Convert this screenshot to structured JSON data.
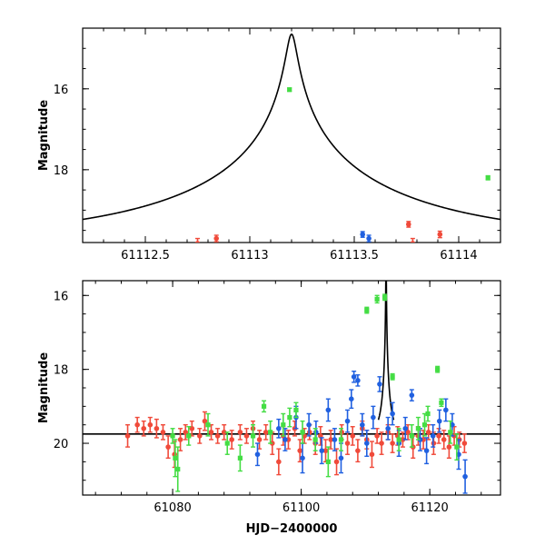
{
  "chart_data": [
    {
      "type": "scatter",
      "name": "top-panel",
      "ylabel": "Magnitude",
      "xlabel": "",
      "xlim": [
        61112.2,
        61114.2
      ],
      "ylim": [
        14.5,
        19.8
      ],
      "y_inverted": true,
      "x_ticks": [
        61112.5,
        61113,
        61113.5,
        61114
      ],
      "x_tick_labels": [
        "61112.5",
        "61113",
        "61113.5",
        "61114"
      ],
      "y_ticks": [
        16,
        18
      ],
      "y_tick_labels": [
        "16",
        "18"
      ],
      "model": {
        "baseline": 19.75,
        "peak_time": 61113.2,
        "peak_mag": 14.65,
        "u0": 0.02,
        "tE": 1.2
      },
      "series": [
        {
          "name": "red",
          "color": "#f04a3a",
          "marker": "circle",
          "points": [
            [
              61112.75,
              19.82,
              0.12
            ],
            [
              61112.84,
              19.7,
              0.08
            ],
            [
              61113.76,
              19.35,
              0.07
            ],
            [
              61113.78,
              19.82,
              0.12
            ],
            [
              61113.91,
              19.6,
              0.08
            ]
          ]
        },
        {
          "name": "blue",
          "color": "#2060e0",
          "marker": "circle",
          "points": [
            [
              61113.54,
              19.6,
              0.07
            ],
            [
              61113.57,
              19.7,
              0.08
            ]
          ]
        },
        {
          "name": "green",
          "color": "#44dd44",
          "marker": "square",
          "points": [
            [
              61113.19,
              16.02,
              0.04
            ],
            [
              61114.14,
              18.2,
              0.05
            ]
          ]
        }
      ]
    },
    {
      "type": "scatter",
      "name": "bottom-panel",
      "ylabel": "Magnitude",
      "xlabel": "HJD−2400000",
      "xlim": [
        61066,
        61131
      ],
      "ylim": [
        15.6,
        21.4
      ],
      "y_inverted": true,
      "x_ticks": [
        61080,
        61100,
        61120
      ],
      "x_tick_labels": [
        "61080",
        "61100",
        "61120"
      ],
      "y_ticks": [
        16,
        18,
        20
      ],
      "y_tick_labels": [
        "16",
        "18",
        "20"
      ],
      "model": {
        "baseline": 19.75,
        "peak_time": 61113.2,
        "peak_mag": 14.65,
        "u0": 0.02,
        "tE": 1.2
      },
      "series": [
        {
          "name": "red",
          "color": "#f04a3a",
          "marker": "circle",
          "points": [
            [
              61073,
              19.8,
              0.3
            ],
            [
              61074.5,
              19.5,
              0.2
            ],
            [
              61075.5,
              19.6,
              0.2
            ],
            [
              61076.5,
              19.5,
              0.2
            ],
            [
              61077.5,
              19.6,
              0.25
            ],
            [
              61078.5,
              19.7,
              0.2
            ],
            [
              61079.3,
              20.1,
              0.3
            ],
            [
              61080.3,
              20.3,
              0.35
            ],
            [
              61081.2,
              19.9,
              0.3
            ],
            [
              61082,
              19.7,
              0.2
            ],
            [
              61083,
              19.6,
              0.2
            ],
            [
              61084.2,
              19.8,
              0.2
            ],
            [
              61085,
              19.4,
              0.25
            ],
            [
              61086,
              19.7,
              0.2
            ],
            [
              61087,
              19.8,
              0.2
            ],
            [
              61088,
              19.7,
              0.2
            ],
            [
              61089.2,
              19.9,
              0.25
            ],
            [
              61090.5,
              19.7,
              0.2
            ],
            [
              61091.5,
              19.8,
              0.2
            ],
            [
              61092.5,
              19.6,
              0.2
            ],
            [
              61093.5,
              19.9,
              0.25
            ],
            [
              61094.5,
              19.7,
              0.2
            ],
            [
              61095.5,
              20.0,
              0.3
            ],
            [
              61096.5,
              20.5,
              0.35
            ],
            [
              61097.2,
              19.8,
              0.25
            ],
            [
              61098,
              19.9,
              0.25
            ],
            [
              61099,
              19.6,
              0.2
            ],
            [
              61099.8,
              20.2,
              0.3
            ],
            [
              61100.5,
              19.8,
              0.2
            ],
            [
              61101.3,
              19.7,
              0.2
            ],
            [
              61102.2,
              20.0,
              0.3
            ],
            [
              61103,
              19.8,
              0.25
            ],
            [
              61103.8,
              20.2,
              0.3
            ],
            [
              61104.6,
              19.9,
              0.25
            ],
            [
              61105.5,
              20.5,
              0.35
            ],
            [
              61106.3,
              19.7,
              0.2
            ],
            [
              61107.2,
              20.0,
              0.3
            ],
            [
              61108,
              19.8,
              0.25
            ],
            [
              61108.8,
              20.2,
              0.3
            ],
            [
              61109.5,
              19.6,
              0.2
            ],
            [
              61110.2,
              19.9,
              0.25
            ],
            [
              61111,
              20.3,
              0.35
            ],
            [
              61111.8,
              19.8,
              0.2
            ],
            [
              61112.5,
              20.0,
              0.3
            ],
            [
              61113.5,
              19.7,
              0.2
            ],
            [
              61114.2,
              20.0,
              0.25
            ],
            [
              61115,
              19.8,
              0.25
            ],
            [
              61115.8,
              19.9,
              0.2
            ],
            [
              61116.6,
              19.7,
              0.2
            ],
            [
              61117.4,
              20.1,
              0.3
            ],
            [
              61118.2,
              19.8,
              0.25
            ],
            [
              61119,
              19.9,
              0.25
            ],
            [
              61119.8,
              19.7,
              0.2
            ],
            [
              61120.6,
              20.0,
              0.3
            ],
            [
              61121.4,
              19.8,
              0.2
            ],
            [
              61122.2,
              19.9,
              0.25
            ],
            [
              61123,
              20.1,
              0.3
            ],
            [
              61123.8,
              19.8,
              0.25
            ],
            [
              61124.6,
              19.9,
              0.2
            ],
            [
              61125.4,
              20.0,
              0.25
            ]
          ]
        },
        {
          "name": "blue",
          "color": "#2060e0",
          "marker": "circle",
          "points": [
            [
              61093.2,
              20.3,
              0.3
            ],
            [
              61096.5,
              19.6,
              0.25
            ],
            [
              61097.5,
              19.9,
              0.3
            ],
            [
              61099.2,
              19.3,
              0.3
            ],
            [
              61100.2,
              20.4,
              0.4
            ],
            [
              61101.2,
              19.5,
              0.3
            ],
            [
              61102.3,
              19.7,
              0.3
            ],
            [
              61103.2,
              20.2,
              0.35
            ],
            [
              61104.2,
              19.1,
              0.3
            ],
            [
              61105.2,
              19.9,
              0.3
            ],
            [
              61106.2,
              20.4,
              0.4
            ],
            [
              61107.2,
              19.4,
              0.3
            ],
            [
              61107.8,
              18.8,
              0.25
            ],
            [
              61108.2,
              18.2,
              0.15
            ],
            [
              61108.8,
              18.3,
              0.15
            ],
            [
              61109.5,
              19.5,
              0.3
            ],
            [
              61110.2,
              20.0,
              0.35
            ],
            [
              61111.2,
              19.3,
              0.3
            ],
            [
              61112.2,
              18.4,
              0.2
            ],
            [
              61113.5,
              19.6,
              0.3
            ],
            [
              61114.2,
              19.2,
              0.3
            ],
            [
              61115.2,
              20.0,
              0.35
            ],
            [
              61116.2,
              19.6,
              0.3
            ],
            [
              61117.2,
              18.7,
              0.15
            ],
            [
              61118.5,
              19.9,
              0.3
            ],
            [
              61119.5,
              20.2,
              0.35
            ],
            [
              61120.5,
              19.8,
              0.3
            ],
            [
              61121.5,
              19.4,
              0.3
            ],
            [
              61122.5,
              19.1,
              0.3
            ],
            [
              61123.5,
              19.5,
              0.3
            ],
            [
              61124.5,
              20.3,
              0.4
            ],
            [
              61125.5,
              20.9,
              0.45
            ]
          ]
        },
        {
          "name": "green",
          "color": "#44dd44",
          "marker": "square",
          "points": [
            [
              61080,
              19.8,
              0.2
            ],
            [
              61080.4,
              20.4,
              0.5
            ],
            [
              61080.8,
              20.7,
              0.6
            ],
            [
              61082.5,
              19.8,
              0.25
            ],
            [
              61085.5,
              19.5,
              0.3
            ],
            [
              61088.5,
              20.0,
              0.3
            ],
            [
              61090.5,
              20.4,
              0.35
            ],
            [
              61092.5,
              19.8,
              0.3
            ],
            [
              61094.2,
              19.0,
              0.15
            ],
            [
              61095.2,
              19.7,
              0.3
            ],
            [
              61097.2,
              19.5,
              0.3
            ],
            [
              61098.2,
              19.3,
              0.25
            ],
            [
              61099.2,
              19.1,
              0.2
            ],
            [
              61100.2,
              19.7,
              0.3
            ],
            [
              61102.2,
              19.9,
              0.3
            ],
            [
              61104.2,
              20.5,
              0.4
            ],
            [
              61106.2,
              19.9,
              0.3
            ],
            [
              61110.2,
              16.4,
              0.08
            ],
            [
              61111.8,
              16.1,
              0.1
            ],
            [
              61113,
              16.05,
              0.08
            ],
            [
              61114.2,
              18.2,
              0.08
            ],
            [
              61115.2,
              19.9,
              0.3
            ],
            [
              61117.2,
              19.8,
              0.3
            ],
            [
              61118.2,
              19.6,
              0.3
            ],
            [
              61119.2,
              19.5,
              0.3
            ],
            [
              61119.7,
              19.2,
              0.2
            ],
            [
              61121.2,
              18.0,
              0.08
            ],
            [
              61121.8,
              18.9,
              0.1
            ],
            [
              61123.2,
              19.7,
              0.3
            ],
            [
              61124.2,
              20.1,
              0.35
            ]
          ]
        }
      ]
    }
  ]
}
